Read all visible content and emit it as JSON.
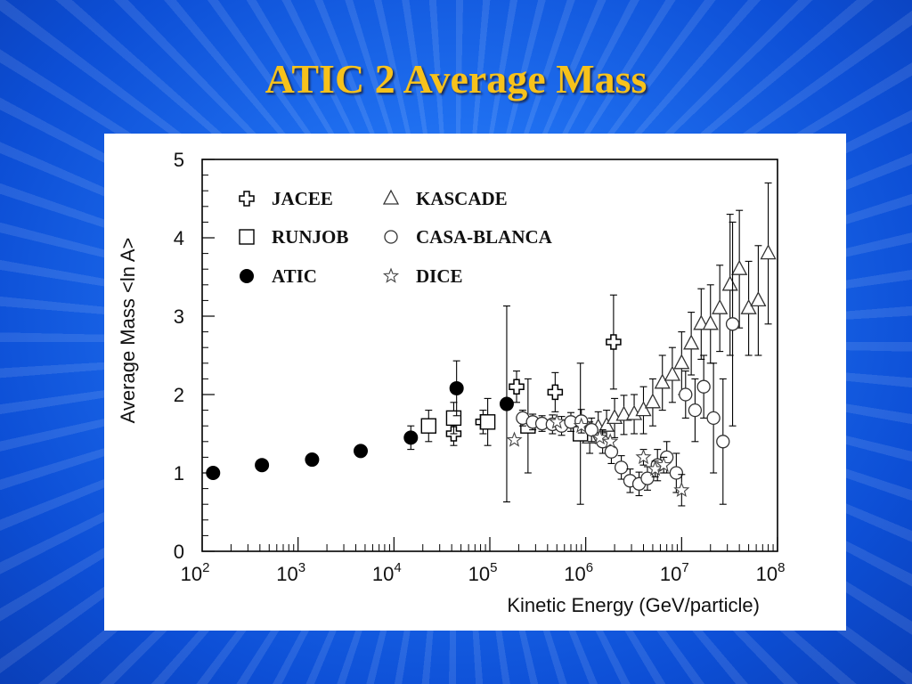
{
  "slide": {
    "title": "ATIC 2 Average Mass"
  },
  "chart_data": {
    "type": "scatter",
    "xscale": "log",
    "xlim": [
      100,
      100000000
    ],
    "ylim": [
      0,
      5
    ],
    "xlabel": "Kinetic Energy (GeV/particle)",
    "ylabel": "Average Mass <ln A>",
    "yticks": [
      "0",
      "1",
      "2",
      "3",
      "4",
      "5"
    ],
    "xticks": [
      {
        "base": "10",
        "exp": "2"
      },
      {
        "base": "10",
        "exp": "3"
      },
      {
        "base": "10",
        "exp": "4"
      },
      {
        "base": "10",
        "exp": "5"
      },
      {
        "base": "10",
        "exp": "6"
      },
      {
        "base": "10",
        "exp": "7"
      },
      {
        "base": "10",
        "exp": "8"
      }
    ],
    "legend_placement": "top-left",
    "series": [
      {
        "name": "JACEE",
        "marker": "open-cross",
        "points": [
          {
            "x": 42000,
            "y": 1.5,
            "err": 0.15
          },
          {
            "x": 85000,
            "y": 1.65,
            "err": 0.15
          },
          {
            "x": 190000,
            "y": 2.1,
            "err": 0.2
          },
          {
            "x": 480000,
            "y": 2.03,
            "err": 0.25
          },
          {
            "x": 1950000,
            "y": 2.67,
            "err": 0.6
          }
        ]
      },
      {
        "name": "KASCADE",
        "marker": "open-triangle",
        "points": [
          {
            "x": 1100000,
            "y": 1.45,
            "err": 0.2
          },
          {
            "x": 1350000,
            "y": 1.58,
            "err": 0.2
          },
          {
            "x": 1650000,
            "y": 1.6,
            "err": 0.2
          },
          {
            "x": 2000000,
            "y": 1.7,
            "err": 0.25
          },
          {
            "x": 2500000,
            "y": 1.74,
            "err": 0.25
          },
          {
            "x": 3200000,
            "y": 1.75,
            "err": 0.25
          },
          {
            "x": 4000000,
            "y": 1.8,
            "err": 0.3
          },
          {
            "x": 5000000,
            "y": 1.9,
            "err": 0.3
          },
          {
            "x": 6300000,
            "y": 2.15,
            "err": 0.35
          },
          {
            "x": 8000000,
            "y": 2.25,
            "err": 0.35
          },
          {
            "x": 10000000,
            "y": 2.4,
            "err": 0.4
          },
          {
            "x": 12600000,
            "y": 2.65,
            "err": 0.4
          },
          {
            "x": 16000000,
            "y": 2.9,
            "err": 0.45
          },
          {
            "x": 20000000,
            "y": 2.9,
            "err": 0.5
          },
          {
            "x": 25000000,
            "y": 3.1,
            "err": 0.55
          },
          {
            "x": 32000000,
            "y": 3.4,
            "err": 0.9
          },
          {
            "x": 40000000,
            "y": 3.6,
            "err": 0.75
          },
          {
            "x": 50000000,
            "y": 3.1,
            "err": 0.6
          },
          {
            "x": 63000000,
            "y": 3.2,
            "err": 0.7
          },
          {
            "x": 80000000,
            "y": 3.8,
            "err": 0.9
          }
        ]
      },
      {
        "name": "RUNJOB",
        "marker": "open-square",
        "points": [
          {
            "x": 23000,
            "y": 1.6,
            "err": 0.2
          },
          {
            "x": 42000,
            "y": 1.7,
            "err": 0.2
          },
          {
            "x": 95000,
            "y": 1.65,
            "err": 0.3
          },
          {
            "x": 250000,
            "y": 1.6,
            "err": 0.6
          },
          {
            "x": 880000,
            "y": 1.5,
            "err": 0.9
          }
        ]
      },
      {
        "name": "CASA-BLANCA",
        "marker": "open-circle",
        "points": [
          {
            "x": 220000,
            "y": 1.7,
            "err": 0.1
          },
          {
            "x": 280000,
            "y": 1.65,
            "err": 0.1
          },
          {
            "x": 350000,
            "y": 1.63,
            "err": 0.1
          },
          {
            "x": 450000,
            "y": 1.62,
            "err": 0.12
          },
          {
            "x": 560000,
            "y": 1.6,
            "err": 0.12
          },
          {
            "x": 700000,
            "y": 1.65,
            "err": 0.12
          },
          {
            "x": 900000,
            "y": 1.66,
            "err": 0.15
          },
          {
            "x": 1150000,
            "y": 1.55,
            "err": 0.15
          },
          {
            "x": 1500000,
            "y": 1.4,
            "err": 0.15
          },
          {
            "x": 1850000,
            "y": 1.27,
            "err": 0.15
          },
          {
            "x": 2350000,
            "y": 1.07,
            "err": 0.15
          },
          {
            "x": 2900000,
            "y": 0.9,
            "err": 0.15
          },
          {
            "x": 3600000,
            "y": 0.86,
            "err": 0.15
          },
          {
            "x": 4400000,
            "y": 0.93,
            "err": 0.15
          },
          {
            "x": 5600000,
            "y": 1.1,
            "err": 0.2
          },
          {
            "x": 7000000,
            "y": 1.2,
            "err": 0.2
          },
          {
            "x": 8800000,
            "y": 1.0,
            "err": 0.25
          },
          {
            "x": 11000000,
            "y": 2.0,
            "err": 0.3
          },
          {
            "x": 13800000,
            "y": 1.8,
            "err": 0.4
          },
          {
            "x": 17000000,
            "y": 2.1,
            "err": 0.4
          },
          {
            "x": 21500000,
            "y": 1.7,
            "err": 0.7
          },
          {
            "x": 27000000,
            "y": 1.4,
            "err": 0.8
          },
          {
            "x": 34000000,
            "y": 2.9,
            "err": 1.3
          }
        ]
      },
      {
        "name": "ATIC",
        "marker": "filled-circle",
        "points": [
          {
            "x": 130,
            "y": 1.0,
            "err": 0
          },
          {
            "x": 420,
            "y": 1.1,
            "err": 0
          },
          {
            "x": 1400,
            "y": 1.17,
            "err": 0
          },
          {
            "x": 4500,
            "y": 1.28,
            "err": 0
          },
          {
            "x": 15000,
            "y": 1.45,
            "err": 0.15
          },
          {
            "x": 45000,
            "y": 2.08,
            "err": 0.35
          },
          {
            "x": 150000,
            "y": 1.88,
            "err": 1.25
          }
        ]
      },
      {
        "name": "DICE",
        "marker": "open-star",
        "points": [
          {
            "x": 180000,
            "y": 1.42,
            "err": 0
          },
          {
            "x": 500000,
            "y": 1.65,
            "err": 0
          },
          {
            "x": 900000,
            "y": 1.6,
            "err": 0
          },
          {
            "x": 1400000,
            "y": 1.45,
            "err": 0
          },
          {
            "x": 1800000,
            "y": 1.4,
            "err": 0
          },
          {
            "x": 4000000,
            "y": 1.2,
            "err": 0.1
          },
          {
            "x": 5300000,
            "y": 1.05,
            "err": 0.1
          },
          {
            "x": 6500000,
            "y": 1.1,
            "err": 0.1
          },
          {
            "x": 10000000,
            "y": 0.78,
            "err": 0.2
          }
        ]
      }
    ]
  }
}
